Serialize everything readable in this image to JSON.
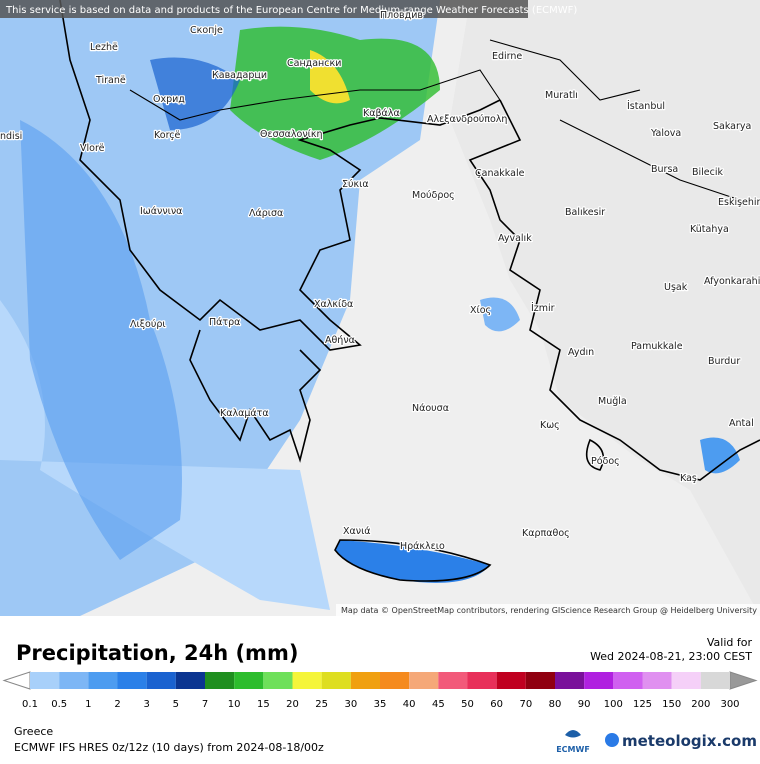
{
  "header": {
    "notice": "This service is based on data and products of the European Centre for Medium-range Weather Forecasts (ECMWF)"
  },
  "map": {
    "attribution": "Map data © OpenStreetMap contributors, rendering GIScience Research Group @ Heidelberg University",
    "cities": [
      "Lezhë",
      "Скопје",
      "Пловдив",
      "Tiranë",
      "Кавадарци",
      "Сандански",
      "Edirne",
      "Muratlı",
      "İstanbul",
      "Охрид",
      "Καβάλα",
      "Αλεξανδρούπολη",
      "Yalova",
      "Sakarya",
      "ndisi",
      "Vlorë",
      "Korçë",
      "Θεσσαλονίκη",
      "Bursa",
      "Bilecik",
      "Çanakkale",
      "Σύκια",
      "Μούδρος",
      "Balıkesir",
      "Eskişehir",
      "Ιωάννινα",
      "Λάρισα",
      "Kütahya",
      "Ayvalık",
      "Uşak",
      "Afyonkarahi",
      "Χαλκίδα",
      "İzmir",
      "Χίος",
      "Λιξούρι",
      "Πάτρα",
      "Αθήνα",
      "Aydın",
      "Pamukkale",
      "Burdur",
      "Καλαμάτα",
      "Νάουσα",
      "Muğla",
      "Κως",
      "Antal",
      "Ρόδος",
      "Kaş",
      "Χανιά",
      "Καρπαθος",
      "Ηράκλειο"
    ]
  },
  "legend": {
    "title": "Precipitation, 24h (mm)",
    "valid_label": "Valid for",
    "valid_time": "Wed 2024-08-21, 23:00 CEST",
    "ticks": [
      "0.1",
      "0.5",
      "1",
      "2",
      "3",
      "5",
      "7",
      "10",
      "15",
      "20",
      "25",
      "30",
      "35",
      "40",
      "45",
      "50",
      "60",
      "70",
      "80",
      "90",
      "100",
      "125",
      "150",
      "200",
      "300"
    ],
    "colors": [
      "#a8d0fa",
      "#7db6f5",
      "#4d9cf0",
      "#2b80e8",
      "#1a62d0",
      "#0b3591",
      "#1f8f1f",
      "#2dbd2d",
      "#6ee05a",
      "#f5f53a",
      "#dede20",
      "#f0a010",
      "#f58a1e",
      "#f5a878",
      "#f25a7a",
      "#e8305a",
      "#c00020",
      "#900010",
      "#7a109a",
      "#b020e0",
      "#d060f0",
      "#e090f0",
      "#f5d0f8",
      "#d8d8d8"
    ]
  },
  "footer": {
    "region": "Greece",
    "model": "ECMWF IFS HRES 0z/12z (10 days) from  2024-08-18/00z",
    "ecmwf": "ECMWF",
    "brand": "meteologix.com"
  }
}
